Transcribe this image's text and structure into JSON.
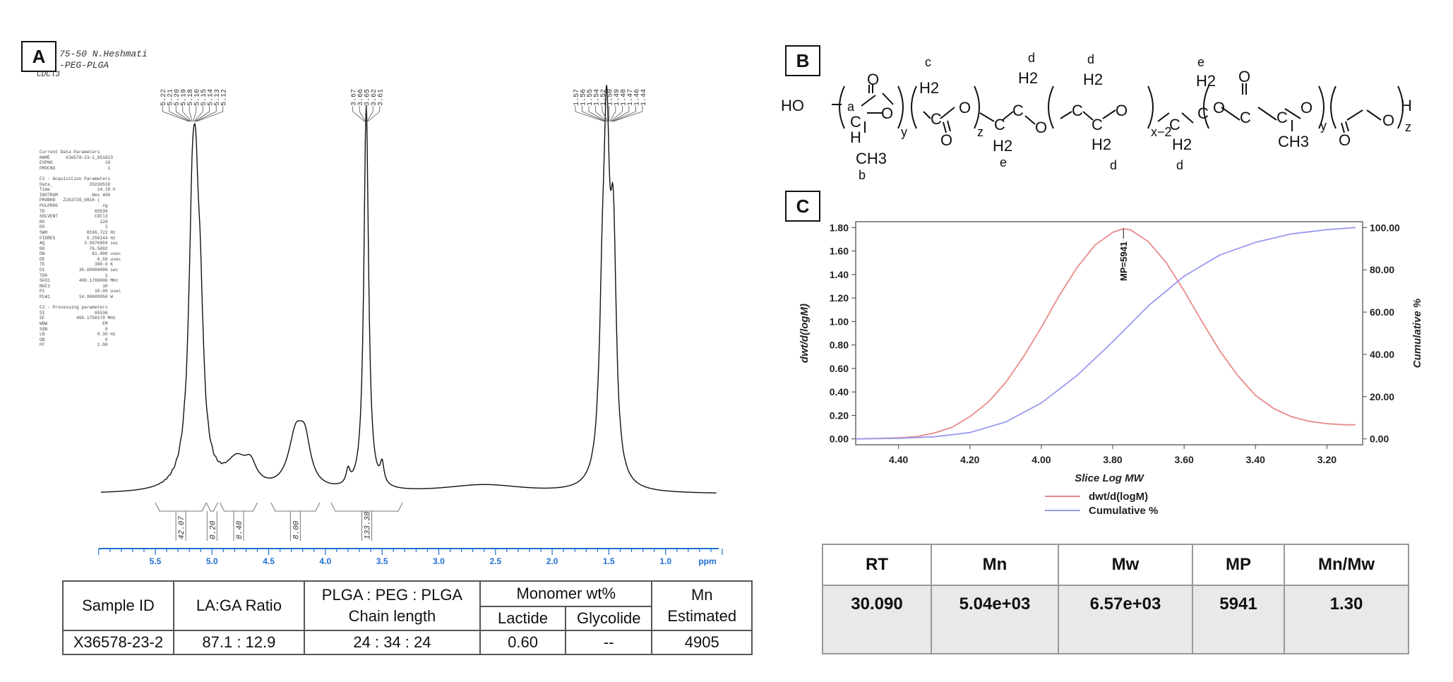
{
  "panels": {
    "a": "A",
    "b": "B",
    "c": "C"
  },
  "nmr": {
    "header": [
      "75-50 N.Heshmati",
      "-PEG-PLGA",
      "CDCl3"
    ],
    "params_text": "Current Data Parameters\nNAME      X36578-23-2_051823\nEXPNO                    10\nPROCNO                    1\n\nF2 - Acquisition Parameters\nDate_              20230518\nTime                  14.18 h\nINSTRUM             Neo 400\nPROBHD   Z163739_0816 (\nPULPROG                 zg\nTD                   65536\nSOLVENT              CDCl3\nNS                     128\nDS                       2\nSWH               8196.722 Hz\nFIDRES            0.250144 Hz\nAQ               3.9976959 sec\nRG                 76.5892\nDW                  61.000 usec\nDE                    6.50 usec\nTE                   300.0 K\nD1             30.00000000 sec\nTD0                      1\nSFO1           400.1768006 MHz\nNUC1                    1H\nP1                   10.00 usec\nPLW1           14.90689850 W\n\nF2 - Processing parameters\nSI                   65536\nSF            400.1750179 MHz\nWDW                     EM\nSSB                      0\nLB                    0.30 Hz\nGB                       0\nPC                    1.00",
    "peak_groups": [
      [
        "5.22",
        "5.21",
        "5.20",
        "5.19",
        "5.18",
        "5.16",
        "5.15",
        "5.14",
        "5.13",
        "5.12"
      ],
      [
        "3.67",
        "3.66",
        "3.65",
        "3.62",
        "3.61"
      ],
      [
        "1.57",
        "1.56",
        "1.55",
        "1.54",
        "1.52",
        "1.50",
        "1.49",
        "1.48",
        "1.47",
        "1.46",
        "1.44"
      ]
    ],
    "integrals": [
      {
        "value": "42.07",
        "from": 5.5,
        "to": 5.05
      },
      {
        "value": "0.20",
        "from": 5.05,
        "to": 4.95
      },
      {
        "value": "8.48",
        "from": 4.93,
        "to": 4.6
      },
      {
        "value": "8.00",
        "from": 4.48,
        "to": 4.05
      },
      {
        "value": "133.38",
        "from": 3.95,
        "to": 3.32
      }
    ],
    "axis": {
      "ticks": [
        "5.5",
        "5.0",
        "4.5",
        "4.0",
        "3.5",
        "3.0",
        "2.5",
        "2.0",
        "1.5",
        "1.0"
      ],
      "unit": "ppm"
    }
  },
  "table_a": {
    "headers": {
      "sample_id": "Sample ID",
      "ratio": "LA:GA Ratio",
      "chain_1": "PLGA : PEG : PLGA",
      "chain_2": "Chain length",
      "monomer": "Monomer wt%",
      "lactide": "Lactide",
      "glycolide": "Glycolide",
      "mn_1": "Mn",
      "mn_2": "Estimated"
    },
    "row": {
      "sample_id": "X36578-23-2",
      "ratio": "87.1 : 12.9",
      "chain": "24 : 34 : 24",
      "lactide": "0.60",
      "glycolide": "--",
      "mn": "4905"
    }
  },
  "structure": {
    "HO": "HO",
    "H": "H",
    "O": "O",
    "CH3": "CH3",
    "C": "C",
    "H2": "H2",
    "a": "a",
    "b": "b",
    "c": "c",
    "d": "d",
    "e": "e",
    "y": "y",
    "z": "z",
    "x2": "x−2"
  },
  "chart_data": [
    {
      "type": "line",
      "xlabel": "Slice Log MW",
      "ylabel": "dwt/d(logM)",
      "y2label": "Cumulative %",
      "x_reversed": true,
      "xlim": [
        4.52,
        3.1
      ],
      "ylim": [
        -0.05,
        1.85
      ],
      "y2lim": [
        -2.78,
        102.78
      ],
      "xticks": [
        "4.40",
        "4.20",
        "4.00",
        "3.80",
        "3.60",
        "3.40",
        "3.20"
      ],
      "yticks": [
        "0.00",
        "0.20",
        "0.40",
        "0.60",
        "0.80",
        "1.00",
        "1.20",
        "1.40",
        "1.60",
        "1.80"
      ],
      "y2ticks": [
        "0.00",
        "20.00",
        "40.00",
        "60.00",
        "80.00",
        "100.00"
      ],
      "annotation": "MP=5941",
      "annotation_x": 3.77,
      "series": [
        {
          "name": "dwt/d(logM)",
          "axis": "left",
          "color": "#e88a8a",
          "x": [
            4.52,
            4.45,
            4.4,
            4.35,
            4.3,
            4.25,
            4.2,
            4.15,
            4.1,
            4.05,
            4.0,
            3.95,
            3.9,
            3.85,
            3.8,
            3.77,
            3.75,
            3.7,
            3.65,
            3.6,
            3.55,
            3.5,
            3.45,
            3.4,
            3.35,
            3.3,
            3.25,
            3.2,
            3.15,
            3.12
          ],
          "y": [
            0.0,
            0.005,
            0.01,
            0.02,
            0.05,
            0.1,
            0.19,
            0.31,
            0.48,
            0.7,
            0.95,
            1.22,
            1.46,
            1.65,
            1.76,
            1.79,
            1.78,
            1.68,
            1.5,
            1.26,
            1.0,
            0.75,
            0.54,
            0.37,
            0.26,
            0.19,
            0.15,
            0.13,
            0.12,
            0.12
          ]
        },
        {
          "name": "Cumulative %",
          "axis": "right",
          "color": "#9a9af0",
          "x": [
            4.52,
            4.4,
            4.3,
            4.2,
            4.1,
            4.0,
            3.9,
            3.8,
            3.7,
            3.6,
            3.5,
            3.4,
            3.3,
            3.2,
            3.12
          ],
          "y": [
            0.0,
            0.3,
            1.0,
            3.0,
            8.0,
            17.0,
            30.0,
            46.0,
            63.0,
            77.0,
            87.0,
            93.0,
            97.0,
            99.0,
            100.0
          ]
        }
      ]
    }
  ],
  "table_c": {
    "headers": [
      "RT",
      "Mn",
      "Mw",
      "MP",
      "Mn/Mw"
    ],
    "values": [
      "30.090",
      "5.04e+03",
      "6.57e+03",
      "5941",
      "1.30"
    ]
  }
}
